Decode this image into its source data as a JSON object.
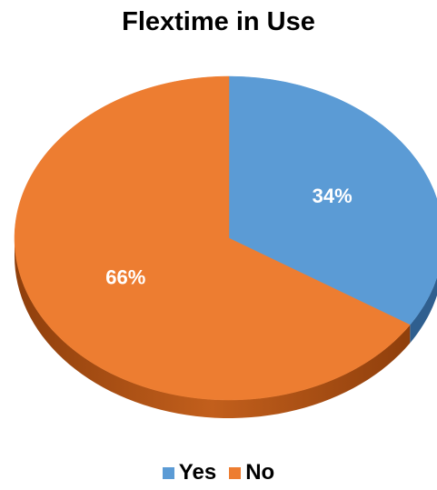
{
  "chart_data": {
    "type": "pie",
    "title": "Flextime in Use",
    "categories": [
      "Yes",
      "No"
    ],
    "values": [
      34,
      66
    ],
    "labels": [
      "34%",
      "66%"
    ],
    "colors": [
      "#5b9bd5",
      "#ed7d31"
    ],
    "side_colors": [
      "#2f5f8f",
      "#a64f12"
    ],
    "legend_position": "bottom",
    "style": "3d"
  }
}
